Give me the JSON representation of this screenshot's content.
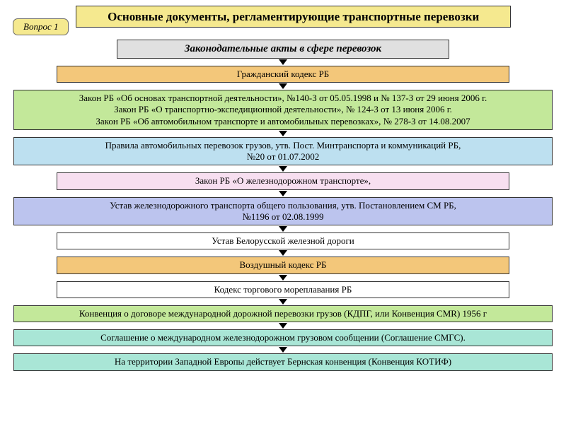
{
  "badge": {
    "text": "Вопрос 1",
    "bg": "#f5e98f"
  },
  "title": {
    "text": "Основные документы, регламентирующие транспортные перевозки",
    "bg": "#f5e98f"
  },
  "flow": [
    {
      "text": "Законодательные акты в сфере перевозок",
      "bg": "#e0e0e0",
      "width": "w-sub",
      "italicBold": true
    },
    {
      "text": "Гражданский кодекс РБ",
      "bg": "#f3c77a",
      "width": "w-640"
    },
    {
      "text": "Закон РБ «Об основах транспортной деятельности», №140-З от 05.05.1998 и № 137-З от 29 июня 2006 г.\nЗакон РБ  «О транспортно-экспедиционной деятельности», № 124-З от 13 июня 2006 г.\nЗакон РБ «Об автомобильном транспорте и автомобильных перевозках», № 278-З от 14.08.2007",
      "bg": "#c3e89a",
      "width": "w-full"
    },
    {
      "text": "Правила автомобильных перевозок грузов, утв. Пост. Минтранспорта и коммуникаций РБ,\n№20 от 01.07.2002",
      "bg": "#bde0f0",
      "width": "w-full"
    },
    {
      "text": "Закон РБ «О железнодорожном транспорте»,",
      "bg": "#f7dff0",
      "width": "w-640"
    },
    {
      "text": "Устав железнодорожного транспорта общего пользования, утв. Постановлением СМ РБ,\n№1196 от 02.08.1999",
      "bg": "#bcc4ee",
      "width": "w-full"
    },
    {
      "text": "Устав Белорусской железной дороги",
      "bg": "#ffffff",
      "width": "w-640"
    },
    {
      "text": "Воздушный кодекс РБ",
      "bg": "#f3c77a",
      "width": "w-640"
    },
    {
      "text": "Кодекс торгового мореплавания РБ",
      "bg": "#ffffff",
      "width": "w-640"
    },
    {
      "text": "Конвенция о договоре международной дорожной перевозки грузов (КДПГ, или  Конвенция CMR) 1956 г",
      "bg": "#c3e89a",
      "width": "w-full"
    },
    {
      "text": "Соглашение о международном железнодорожном грузовом сообщении (Соглашение СМГС).",
      "bg": "#a9e6d6",
      "width": "w-full"
    },
    {
      "text": "На территории Западной Европы действует Бернская конвенция (Конвенция КОТИФ)",
      "bg": "#a9e6d6",
      "width": "w-full"
    }
  ]
}
